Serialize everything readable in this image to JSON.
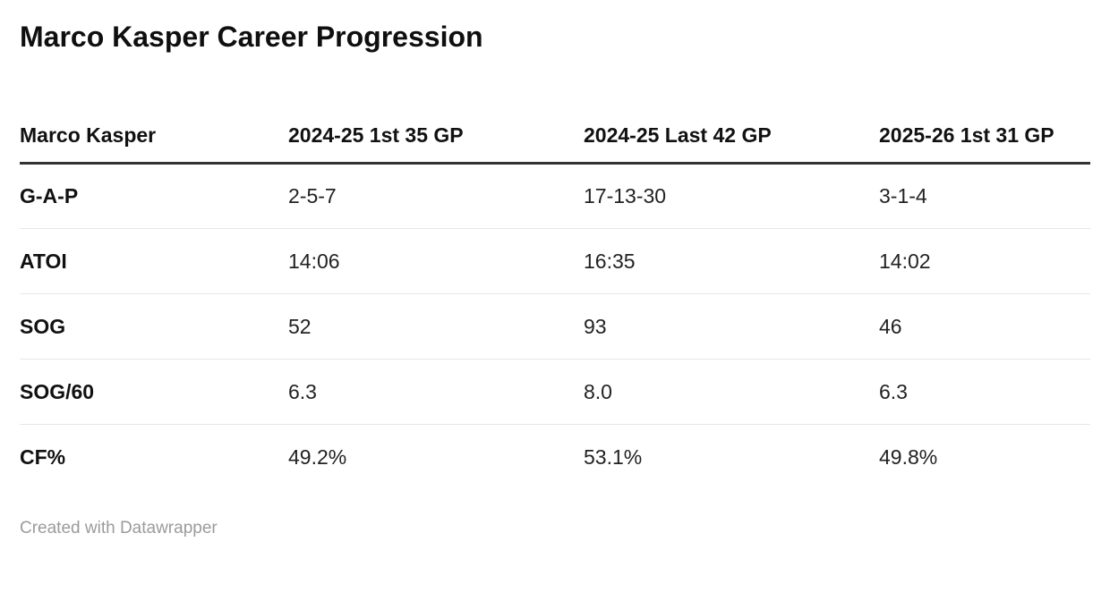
{
  "title": "Marco Kasper Career Progression",
  "chart_data": {
    "type": "table",
    "title": "Marco Kasper Career Progression",
    "columns": [
      "Marco Kasper",
      "2024-25 1st 35 GP",
      "2024-25 Last 42 GP",
      "2025-26 1st 31 GP"
    ],
    "rows": [
      {
        "label": "G-A-P",
        "values": [
          "2-5-7",
          "17-13-30",
          "3-1-4"
        ]
      },
      {
        "label": "ATOI",
        "values": [
          "14:06",
          "16:35",
          "14:02"
        ]
      },
      {
        "label": "SOG",
        "values": [
          "52",
          "93",
          "46"
        ]
      },
      {
        "label": "SOG/60",
        "values": [
          "6.3",
          "8.0",
          "6.3"
        ]
      },
      {
        "label": "CF%",
        "values": [
          "49.2%",
          "53.1%",
          "49.8%"
        ]
      }
    ],
    "layout_hints": {
      "header_rule": "thick-dark-bottom-border",
      "row_dividers": "thin-light-gray",
      "alignment": "left"
    }
  },
  "footer": {
    "attribution": "Created with Datawrapper"
  },
  "colors": {
    "background": "#ffffff",
    "title_text": "#0f0f0f",
    "body_text": "#222222",
    "header_rule": "#333333",
    "row_divider": "#e7e7e7",
    "attribution_text": "#9b9b9b"
  }
}
